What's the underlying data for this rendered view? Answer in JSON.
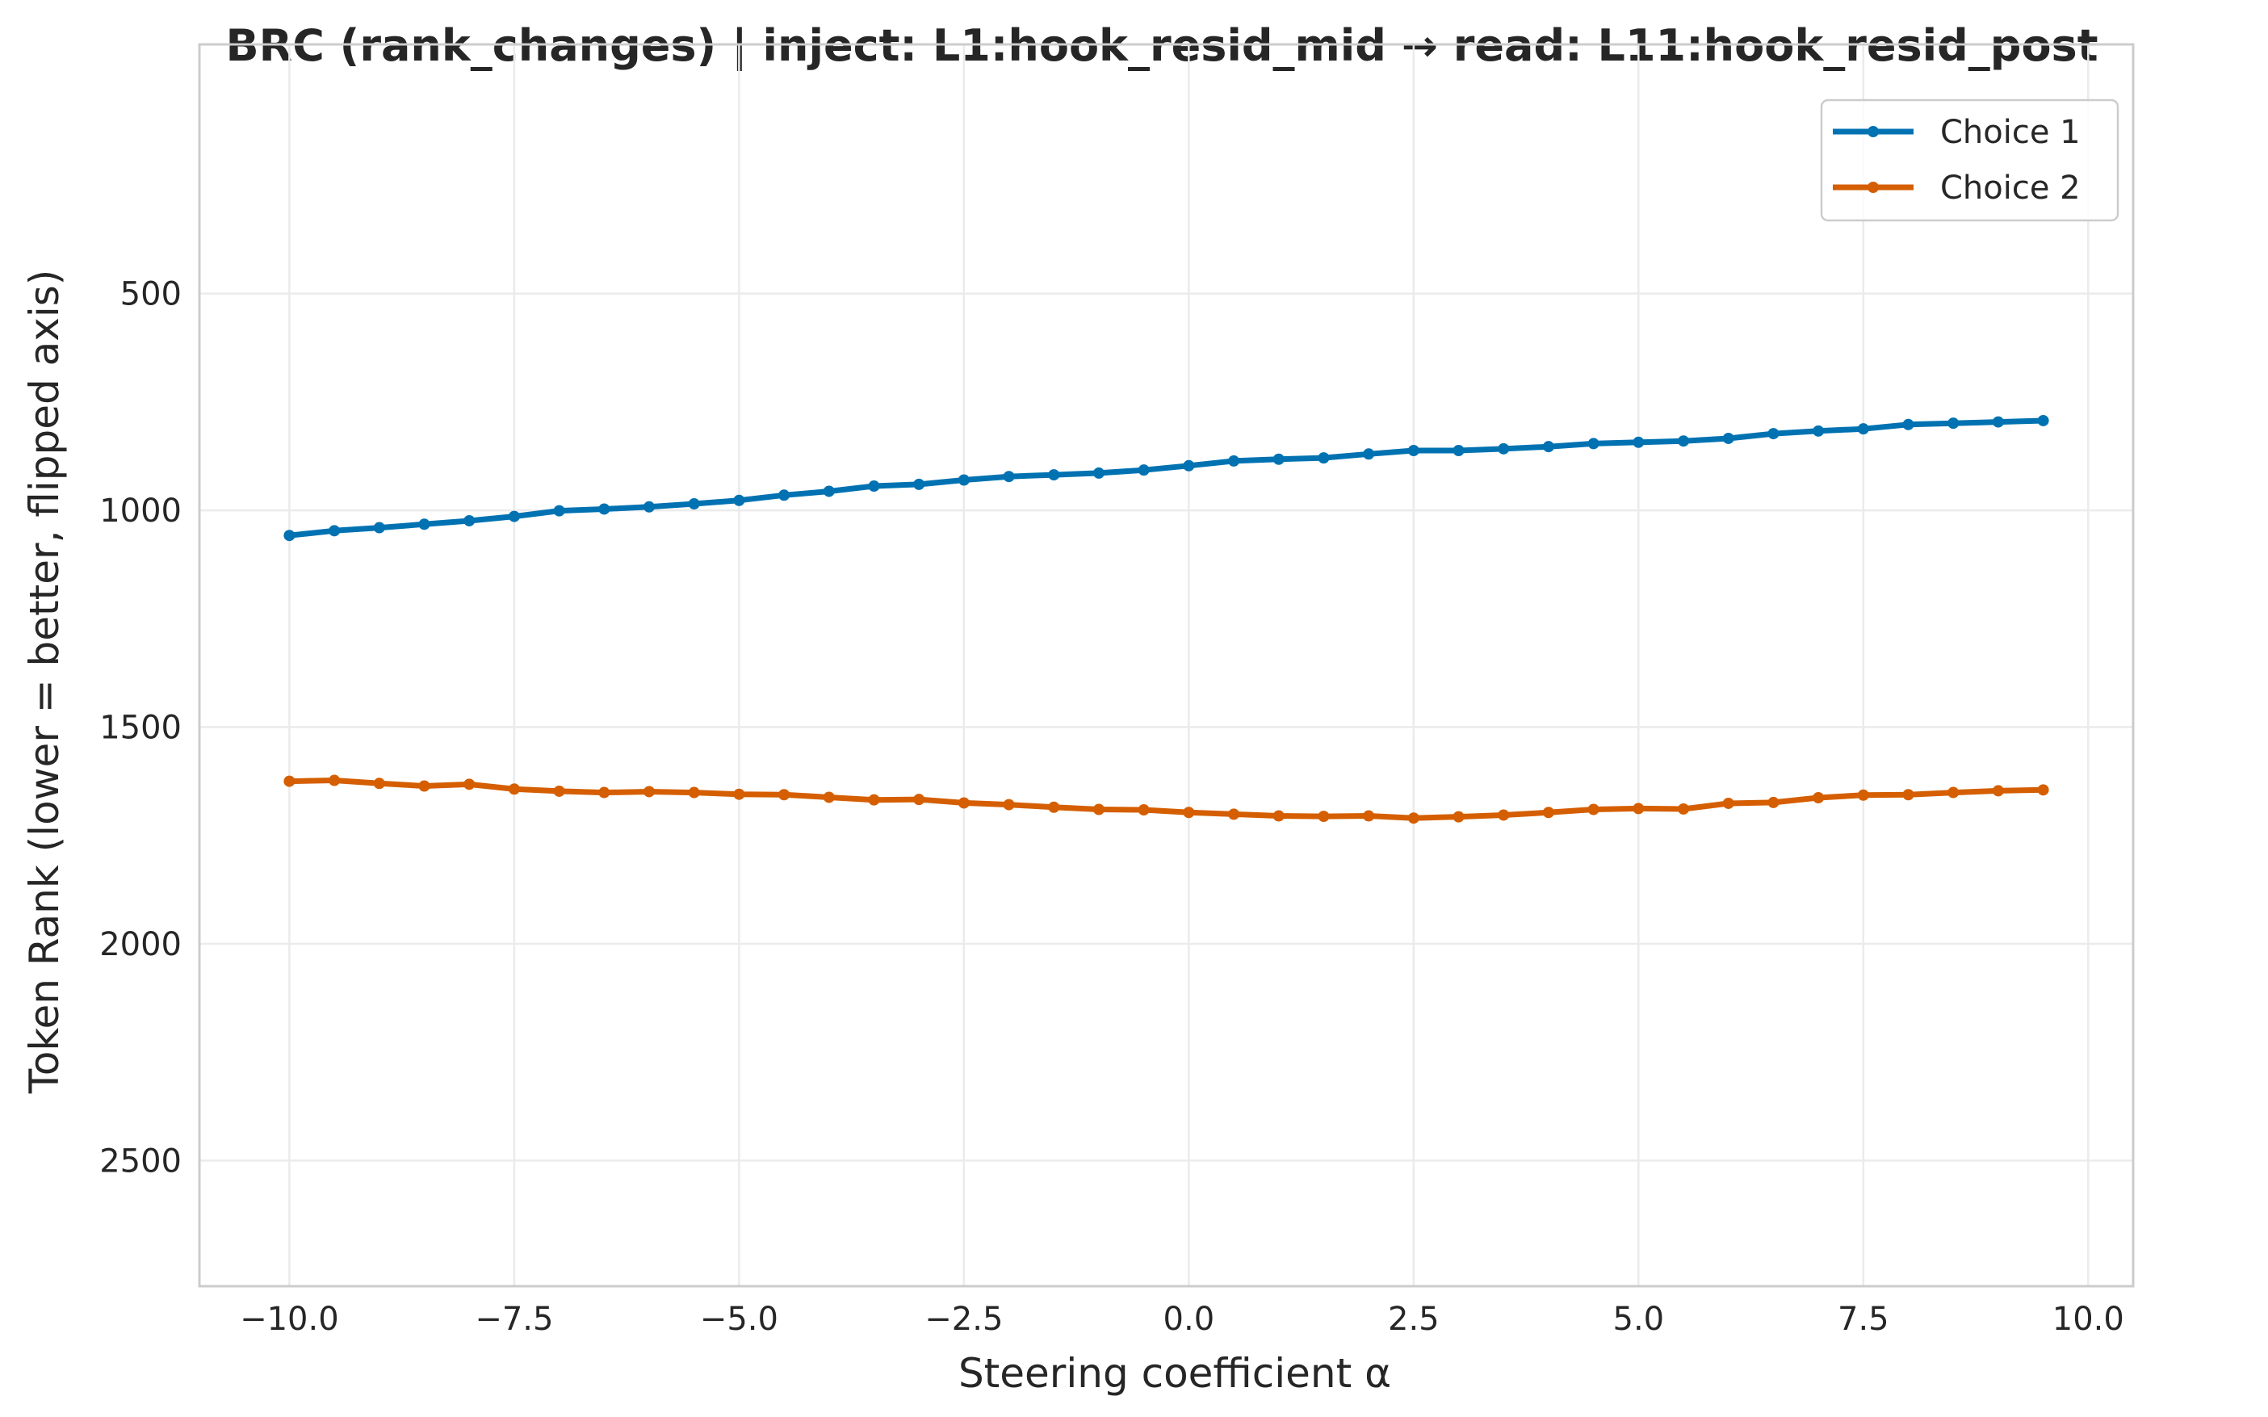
{
  "chart_data": {
    "type": "line",
    "title": "BRC (rank_changes) | inject: L1:hook_resid_mid → read: L11:hook_resid_post",
    "xlabel": "Steering coefficient α",
    "ylabel": "Token Rank (lower = better, flipped axis)",
    "xlim": [
      -11.0,
      10.5
    ],
    "ylim": [
      2790,
      -75
    ],
    "y_inverted": true,
    "grid": true,
    "legend_position": "top-right",
    "x_ticks": [
      -10.0,
      -7.5,
      -5.0,
      -2.5,
      0.0,
      2.5,
      5.0,
      7.5,
      10.0
    ],
    "x_tick_labels": [
      "−10.0",
      "−7.5",
      "−5.0",
      "−2.5",
      "0.0",
      "2.5",
      "5.0",
      "7.5",
      "10.0"
    ],
    "y_ticks": [
      500,
      1000,
      1500,
      2000,
      2500
    ],
    "y_tick_labels": [
      "500",
      "1000",
      "1500",
      "2000",
      "2500"
    ],
    "x": [
      -10.0,
      -9.5,
      -9.0,
      -8.5,
      -8.0,
      -7.5,
      -7.0,
      -6.5,
      -6.0,
      -5.5,
      -5.0,
      -4.5,
      -4.0,
      -3.5,
      -3.0,
      -2.5,
      -2.0,
      -1.5,
      -1.0,
      -0.5,
      0.0,
      0.5,
      1.0,
      1.5,
      2.0,
      2.5,
      3.0,
      3.5,
      4.0,
      4.5,
      5.0,
      5.5,
      6.0,
      6.5,
      7.0,
      7.5,
      8.0,
      8.5,
      9.0,
      9.5
    ],
    "series": [
      {
        "name": "Choice 1",
        "color": "#0072b2",
        "values": [
          1058,
          1047,
          1040,
          1032,
          1024,
          1014,
          1001,
          997,
          992,
          985,
          977,
          965,
          956,
          944,
          940,
          930,
          922,
          918,
          914,
          907,
          897,
          886,
          882,
          879,
          870,
          862,
          862,
          858,
          853,
          846,
          843,
          840,
          834,
          823,
          817,
          812,
          802,
          799,
          796,
          793
        ]
      },
      {
        "name": "Choice 2",
        "color": "#d55e00",
        "values": [
          1625,
          1623,
          1630,
          1636,
          1632,
          1643,
          1648,
          1651,
          1649,
          1651,
          1655,
          1656,
          1662,
          1668,
          1667,
          1675,
          1679,
          1685,
          1690,
          1691,
          1697,
          1701,
          1705,
          1706,
          1705,
          1710,
          1707,
          1703,
          1697,
          1690,
          1688,
          1689,
          1676,
          1674,
          1663,
          1657,
          1656,
          1651,
          1647,
          1645
        ]
      }
    ]
  }
}
